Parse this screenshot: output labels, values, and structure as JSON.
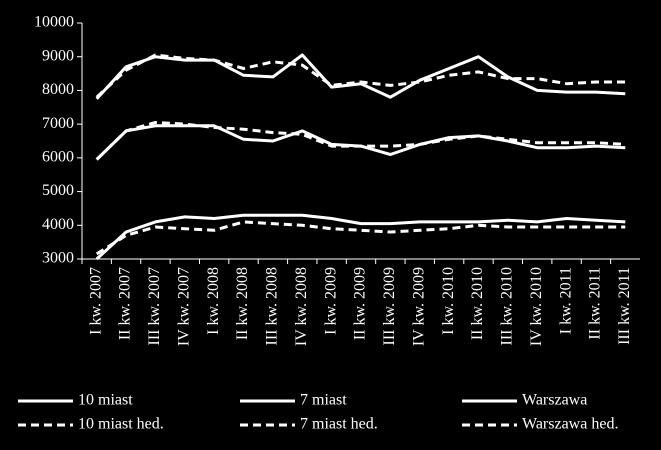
{
  "chart_data": {
    "type": "line",
    "categories": [
      "I kw. 2007",
      "II kw. 2007",
      "III kw. 2007",
      "IV kw. 2007",
      "I kw. 2008",
      "II kw. 2008",
      "III kw. 2008",
      "IV kw. 2008",
      "I kw. 2009",
      "II kw. 2009",
      "III kw. 2009",
      "IV kw. 2009",
      "I kw. 2010",
      "II kw. 2010",
      "III kw. 2010",
      "IV kw. 2010",
      "I kw. 2011",
      "II kw. 2011",
      "III kw. 2011"
    ],
    "ylim": [
      3000,
      10000
    ],
    "yticks": [
      3000,
      4000,
      5000,
      6000,
      7000,
      8000,
      9000,
      10000
    ],
    "series": [
      {
        "name": "10 miast",
        "color": "#ffffff",
        "dash": false,
        "values": [
          3000,
          3800,
          4100,
          4250,
          4200,
          4300,
          4300,
          4300,
          4200,
          4050,
          4050,
          4100,
          4100,
          4100,
          4150,
          4100,
          4200,
          4150,
          4100
        ]
      },
      {
        "name": "7 miast",
        "color": "#ffffff",
        "dash": false,
        "values": [
          5950,
          6800,
          6950,
          6950,
          6950,
          6550,
          6500,
          6800,
          6400,
          6350,
          6100,
          6400,
          6600,
          6650,
          6500,
          6300,
          6300,
          6350,
          6300
        ]
      },
      {
        "name": "Warszawa",
        "color": "#ffffff",
        "dash": false,
        "values": [
          7750,
          8700,
          9000,
          8900,
          8900,
          8450,
          8400,
          9050,
          8100,
          8200,
          7800,
          8300,
          8650,
          9000,
          8400,
          8000,
          7950,
          7950,
          7900
        ]
      },
      {
        "name": "10 miast hed.",
        "color": "#ffffff",
        "dash": true,
        "values": [
          3150,
          3700,
          3950,
          3900,
          3850,
          4100,
          4050,
          4000,
          3900,
          3850,
          3800,
          3850,
          3900,
          4000,
          3950,
          3950,
          3950,
          3950,
          3950
        ]
      },
      {
        "name": "7 miast hed.",
        "color": "#ffffff",
        "dash": true,
        "values": [
          5950,
          6800,
          7050,
          7000,
          6900,
          6850,
          6750,
          6700,
          6350,
          6350,
          6350,
          6400,
          6550,
          6650,
          6550,
          6450,
          6450,
          6450,
          6400
        ]
      },
      {
        "name": "Warszawa hed.",
        "color": "#ffffff",
        "dash": true,
        "values": [
          7800,
          8600,
          9050,
          8950,
          8900,
          8650,
          8850,
          8750,
          8150,
          8250,
          8150,
          8250,
          8450,
          8550,
          8350,
          8350,
          8200,
          8250,
          8250
        ]
      }
    ]
  }
}
